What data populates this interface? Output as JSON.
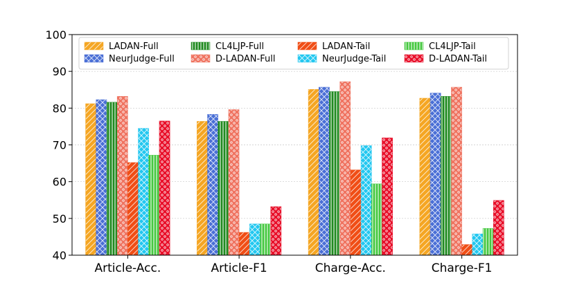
{
  "chart_data": {
    "type": "bar",
    "categories": [
      "Article-Acc.",
      "Article-F1",
      "Charge-Acc.",
      "Charge-F1"
    ],
    "ylim": [
      40,
      100
    ],
    "yticks": [
      40,
      50,
      60,
      70,
      80,
      90,
      100
    ],
    "grid": true,
    "legend_position": "top",
    "series": [
      {
        "name": "LADAN-Full",
        "values": [
          81.2,
          76.4,
          85.1,
          82.7
        ],
        "color": "#f5a623",
        "pattern": "diagonal-light"
      },
      {
        "name": "NeurJudge-Full",
        "values": [
          82.3,
          78.3,
          85.7,
          84.1
        ],
        "color": "#4a6fd6",
        "pattern": "crosshatch"
      },
      {
        "name": "CL4LJP-Full",
        "values": [
          81.6,
          76.4,
          84.5,
          83.2
        ],
        "color": "#1f8a1f",
        "pattern": "vertical"
      },
      {
        "name": "D-LADAN-Full",
        "values": [
          83.2,
          79.6,
          87.2,
          85.7
        ],
        "color": "#ef7461",
        "pattern": "circles"
      },
      {
        "name": "LADAN-Tail",
        "values": [
          65.2,
          46.2,
          63.2,
          42.9
        ],
        "color": "#f04e16",
        "pattern": "diagonal-light"
      },
      {
        "name": "NeurJudge-Tail",
        "values": [
          74.5,
          48.5,
          69.8,
          45.8
        ],
        "color": "#22c7f0",
        "pattern": "crosshatch"
      },
      {
        "name": "CL4LJP-Tail",
        "values": [
          67.2,
          48.5,
          59.4,
          47.3
        ],
        "color": "#45c83f",
        "pattern": "vertical"
      },
      {
        "name": "D-LADAN-Tail",
        "values": [
          76.5,
          53.2,
          71.9,
          54.9
        ],
        "color": "#e8102a",
        "pattern": "circles"
      }
    ]
  }
}
